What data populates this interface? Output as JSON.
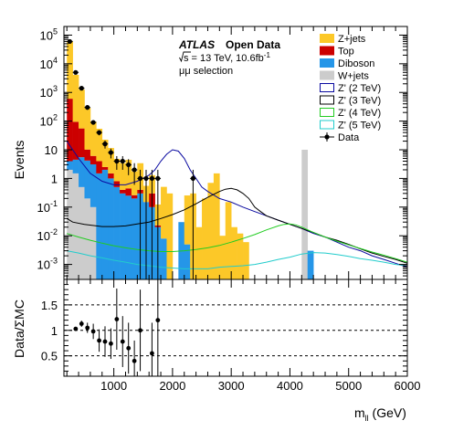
{
  "chart_data": {
    "type": "histogram",
    "xrange": [
      150,
      6000
    ],
    "bin_width": 100,
    "xticks": [
      1000,
      2000,
      3000,
      4000,
      5000,
      6000
    ],
    "xlabel": {
      "main": "m",
      "sub": "ll",
      "unit": " (GeV)"
    },
    "upper": {
      "ylabel": "Events",
      "yscale": "log",
      "ylim": [
        0.0003,
        200000
      ],
      "ytick_labels": [
        {
          "value": 0.001,
          "mant": "10",
          "exp": "-3"
        },
        {
          "value": 0.01,
          "mant": "10",
          "exp": "-2"
        },
        {
          "value": 0.1,
          "mant": "10",
          "exp": "-1"
        },
        {
          "value": 1,
          "mant": "1",
          "exp": ""
        },
        {
          "value": 10,
          "mant": "10",
          "exp": ""
        },
        {
          "value": 100,
          "mant": "10",
          "exp": "2"
        },
        {
          "value": 1000,
          "mant": "10",
          "exp": "3"
        },
        {
          "value": 10000,
          "mant": "10",
          "exp": "4"
        },
        {
          "value": 100000,
          "mant": "10",
          "exp": "5"
        }
      ],
      "stack": {
        "bin_lows": [
          200,
          300,
          400,
          500,
          600,
          700,
          800,
          900,
          1000,
          1100,
          1200,
          1300,
          1400,
          1500,
          1600,
          1700,
          1800,
          1900,
          2000,
          2100,
          2200,
          2300,
          2400,
          2500,
          2600,
          2700,
          2800,
          2900,
          3000,
          3100,
          3200,
          3300,
          3400,
          3500,
          3600,
          3700,
          3800,
          3900,
          4000,
          4100,
          4200,
          4300,
          4400
        ],
        "wjets": [
          2,
          1.5,
          0.5,
          0.2,
          0.1,
          0,
          0,
          0,
          0,
          0,
          0,
          0,
          0,
          0,
          0,
          0,
          0,
          0,
          0,
          0,
          0,
          0,
          0,
          0,
          0,
          0,
          0,
          0,
          0,
          0,
          0,
          0,
          0,
          0,
          0,
          0,
          0,
          0,
          0,
          0,
          10,
          0,
          0
        ],
        "diboson": [
          2,
          3,
          5,
          4,
          3,
          1.5,
          2,
          1,
          0.5,
          0.3,
          0.25,
          0.2,
          0.3,
          0.15,
          0.1,
          0.02,
          0.008,
          0,
          0,
          0.03,
          0.005,
          0,
          0,
          0,
          0,
          0,
          0,
          0,
          0,
          0,
          0,
          0,
          0,
          0,
          0,
          0,
          0,
          0,
          0,
          0,
          0,
          0.003,
          0
        ],
        "top": [
          600,
          90,
          50,
          6,
          3,
          2.5,
          0.5,
          0.5,
          0.3,
          0.1,
          0.2,
          0.06,
          0.1,
          0.001,
          0.2,
          0.003,
          0,
          0,
          0,
          0,
          0,
          0,
          0,
          0,
          0,
          0,
          0,
          0,
          0,
          0,
          0,
          0,
          0,
          0,
          0,
          0,
          0,
          0,
          0,
          0,
          0,
          0,
          0
        ],
        "zjets": [
          60000,
          4000,
          1200,
          280,
          90,
          50,
          20,
          10,
          4,
          3,
          4,
          1.5,
          3,
          0.4,
          1,
          0.1,
          0.5,
          0.3,
          0,
          0,
          0.25,
          0.3,
          0.02,
          0.2,
          0.7,
          1.5,
          0.01,
          0.15,
          0.02,
          0.012,
          0.006,
          0,
          0,
          0,
          0,
          0,
          0,
          0,
          0,
          0,
          0,
          0,
          0
        ]
      },
      "signals": [
        {
          "label": "Z' (2 TeV)",
          "color": "#0a0aa0",
          "x": [
            200,
            400,
            600,
            800,
            1000,
            1200,
            1400,
            1600,
            1700,
            1800,
            1900,
            2000,
            2100,
            2200,
            2300,
            2400,
            2500,
            2600,
            2800,
            3000,
            3200,
            3400,
            3600,
            3800,
            4000,
            4200,
            4400,
            4600,
            4800,
            5000,
            5200,
            5400,
            5600,
            5800,
            6000
          ],
          "y": [
            20,
            5,
            1.5,
            0.8,
            0.6,
            0.6,
            0.8,
            1.3,
            2,
            4,
            7,
            10,
            9,
            5,
            2,
            1,
            0.5,
            0.35,
            0.2,
            0.15,
            0.1,
            0.07,
            0.05,
            0.035,
            0.025,
            0.018,
            0.012,
            0.009,
            0.006,
            0.004,
            0.003,
            0.002,
            0.0015,
            0.0011,
            0.0008
          ]
        },
        {
          "label": "Z' (3 TeV)",
          "color": "#000000",
          "x": [
            200,
            300,
            500,
            800,
            1000,
            1200,
            1400,
            1600,
            1800,
            2000,
            2200,
            2400,
            2600,
            2800,
            2900,
            3000,
            3100,
            3200,
            3300,
            3400,
            3500,
            3600,
            3800,
            4000,
            4200,
            4400,
            4600,
            4800,
            5000,
            5200,
            5400,
            5600,
            5800,
            6000
          ],
          "y": [
            0.04,
            0.03,
            0.025,
            0.021,
            0.021,
            0.022,
            0.026,
            0.03,
            0.04,
            0.055,
            0.08,
            0.13,
            0.22,
            0.35,
            0.42,
            0.45,
            0.4,
            0.3,
            0.2,
            0.1,
            0.07,
            0.05,
            0.035,
            0.025,
            0.018,
            0.013,
            0.009,
            0.007,
            0.005,
            0.0035,
            0.0025,
            0.0019,
            0.0015,
            0.0011
          ]
        },
        {
          "label": "Z' (4 TeV)",
          "color": "#22cc22",
          "x": [
            200,
            400,
            600,
            800,
            1000,
            1200,
            1400,
            1600,
            1800,
            2000,
            2200,
            2400,
            2600,
            2800,
            3000,
            3200,
            3400,
            3600,
            3800,
            3900,
            4000,
            4100,
            4200,
            4400,
            4600,
            4800,
            5000,
            5200,
            5400,
            5600,
            5800,
            6000
          ],
          "y": [
            0.012,
            0.009,
            0.007,
            0.0055,
            0.0045,
            0.0038,
            0.0033,
            0.003,
            0.0028,
            0.0028,
            0.003,
            0.0033,
            0.0038,
            0.0046,
            0.006,
            0.008,
            0.011,
            0.016,
            0.022,
            0.025,
            0.026,
            0.024,
            0.02,
            0.013,
            0.009,
            0.0065,
            0.0048,
            0.0036,
            0.0027,
            0.0021,
            0.0016,
            0.0012
          ]
        },
        {
          "label": "Z' (5 TeV)",
          "color": "#22cccc",
          "x": [
            200,
            400,
            600,
            800,
            1000,
            1200,
            1400,
            1600,
            1800,
            2000,
            2200,
            2400,
            2600,
            2800,
            3000,
            3200,
            3400,
            3600,
            3800,
            4000,
            4200,
            4400,
            4600,
            4800,
            5000,
            5200,
            5400,
            5600,
            5800,
            6000
          ],
          "y": [
            0.003,
            0.0025,
            0.002,
            0.0017,
            0.0014,
            0.0012,
            0.001,
            0.0009,
            0.0008,
            0.00075,
            0.0007,
            0.0007,
            0.0007,
            0.0008,
            0.00085,
            0.0009,
            0.001,
            0.0012,
            0.0015,
            0.0018,
            0.0023,
            0.0026,
            0.0025,
            0.0022,
            0.0019,
            0.0016,
            0.0014,
            0.0012,
            0.001,
            0.0009
          ]
        }
      ],
      "data": [
        {
          "x": 250,
          "y": 60000,
          "err": 4000
        },
        {
          "x": 350,
          "y": 5000,
          "err": 800
        },
        {
          "x": 450,
          "y": 1400,
          "err": 200
        },
        {
          "x": 550,
          "y": 300,
          "err": 50
        },
        {
          "x": 650,
          "y": 90,
          "err": 15
        },
        {
          "x": 750,
          "y": 40,
          "err": 8
        },
        {
          "x": 850,
          "y": 16,
          "err": 5
        },
        {
          "x": 950,
          "y": 8,
          "err": 3
        },
        {
          "x": 1050,
          "y": 4,
          "err": 2
        },
        {
          "x": 1150,
          "y": 4,
          "err": 2
        },
        {
          "x": 1250,
          "y": 3,
          "err": 1.7
        },
        {
          "x": 1350,
          "y": 2,
          "err": 1.4
        },
        {
          "x": 1450,
          "y": 1,
          "err": 1
        },
        {
          "x": 1550,
          "y": 1,
          "err": 1
        },
        {
          "x": 1650,
          "y": 1,
          "err": 1
        },
        {
          "x": 1750,
          "y": 1,
          "err": 1
        },
        {
          "x": 2350,
          "y": 1,
          "err": 1
        }
      ]
    },
    "lower": {
      "ylabel": "Data/ΣMC",
      "ylim": [
        0.1,
        2.0
      ],
      "yticks": [
        0.5,
        1,
        1.5
      ],
      "ytick_labels": [
        "0.5",
        "1",
        "1.5"
      ],
      "reference_lines": [
        0.5,
        1,
        1.5
      ],
      "points": [
        {
          "x": 350,
          "y": 1.03,
          "err": 0.04
        },
        {
          "x": 450,
          "y": 1.13,
          "err": 0.06
        },
        {
          "x": 550,
          "y": 1.05,
          "err": 0.1
        },
        {
          "x": 650,
          "y": 0.98,
          "err": 0.15
        },
        {
          "x": 750,
          "y": 0.8,
          "err": 0.22
        },
        {
          "x": 850,
          "y": 0.78,
          "err": 0.3
        },
        {
          "x": 950,
          "y": 0.74,
          "err": 0.3
        },
        {
          "x": 1050,
          "y": 1.22,
          "err": 0.6
        },
        {
          "x": 1150,
          "y": 0.78,
          "err": 0.5
        },
        {
          "x": 1250,
          "y": 0.65,
          "err": 0.5
        },
        {
          "x": 1350,
          "y": 0.4,
          "err": 0.4
        },
        {
          "x": 1450,
          "y": 1.0,
          "err": 0.8
        },
        {
          "x": 1650,
          "y": 0.55,
          "err": 0.6
        },
        {
          "x": 1750,
          "y": 1.2,
          "err": 1.2
        }
      ]
    },
    "legend": [
      {
        "label": "Z+jets",
        "kind": "fill",
        "color": "#fcc828"
      },
      {
        "label": "Top",
        "kind": "fill",
        "color": "#cc0000"
      },
      {
        "label": "Diboson",
        "kind": "fill",
        "color": "#2596e8"
      },
      {
        "label": "W+jets",
        "kind": "fill",
        "color": "#cccccc"
      },
      {
        "label": "Z' (2 TeV)",
        "kind": "line",
        "color": "#0a0aa0"
      },
      {
        "label": "Z' (3 TeV)",
        "kind": "line",
        "color": "#000000"
      },
      {
        "label": "Z' (4 TeV)",
        "kind": "line",
        "color": "#22cc22"
      },
      {
        "label": "Z' (5 TeV)",
        "kind": "line",
        "color": "#22cccc"
      },
      {
        "label": "Data",
        "kind": "marker",
        "color": "#000000"
      }
    ],
    "annotations": {
      "atlas": "ATLAS",
      "open_data": "Open Data",
      "energy_sqrt": "s",
      "energy_rest": " = 13 TeV, 10.6fb",
      "energy_sup": "-1",
      "selection": "μμ selection"
    }
  }
}
